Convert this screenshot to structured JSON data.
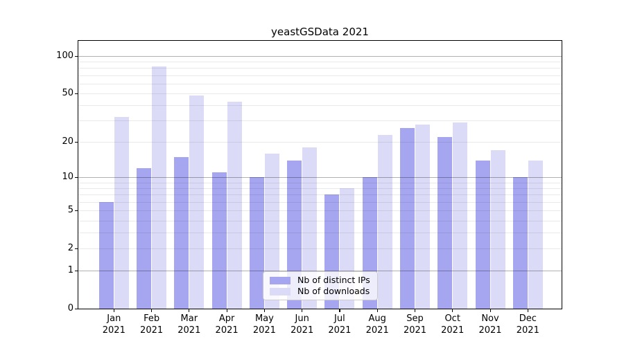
{
  "chart_data": {
    "type": "bar",
    "title": "yeastGSData 2021",
    "categories": [
      "Jan 2021",
      "Feb 2021",
      "Mar 2021",
      "Apr 2021",
      "May 2021",
      "Jun 2021",
      "Jul 2021",
      "Aug 2021",
      "Sep 2021",
      "Oct 2021",
      "Nov 2021",
      "Dec 2021"
    ],
    "series": [
      {
        "name": "Nb of distinct IPs",
        "color": "#a6a6f0",
        "values": [
          6,
          12,
          15,
          11,
          10,
          14,
          7,
          10,
          26,
          22,
          14,
          10
        ]
      },
      {
        "name": "Nb of downloads",
        "color": "#dbdbf7",
        "values": [
          32,
          82,
          48,
          43,
          16,
          18,
          8,
          23,
          28,
          29,
          17,
          14
        ]
      }
    ],
    "yscale": "log1p",
    "ylim": [
      0,
      132
    ],
    "yticks": [
      0,
      1,
      2,
      5,
      10,
      20,
      50,
      100
    ],
    "major_gridlines": [
      1,
      10,
      100
    ],
    "minor_gridlines": [
      2,
      3,
      4,
      5,
      6,
      7,
      8,
      9,
      20,
      30,
      40,
      50,
      60,
      70,
      80,
      90
    ],
    "grid": "horizontal, drawn over bars",
    "legend_position": "inside lower center",
    "colors": {
      "major_grid": "rgba(0,0,0,0.31)",
      "minor_grid": "rgba(0,0,0,0.085)",
      "axis": "#000000",
      "text": "#000000",
      "background": "#ffffff"
    }
  }
}
